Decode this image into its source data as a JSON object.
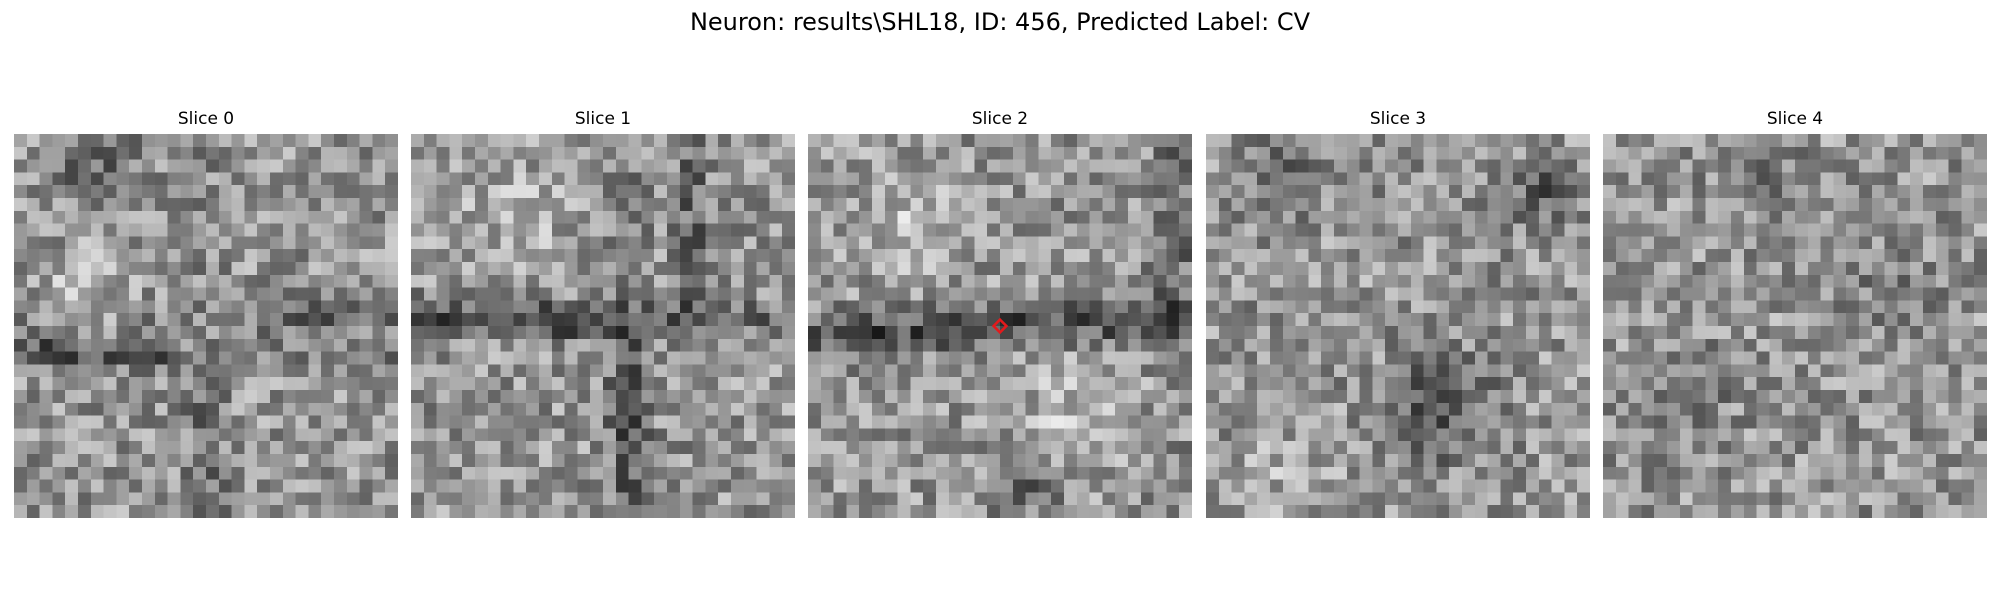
{
  "title": "Neuron: results\\SHL18, ID: 456, Predicted Label: CV",
  "panels": [
    {
      "label": "Slice 0"
    },
    {
      "label": "Slice 1"
    },
    {
      "label": "Slice 2"
    },
    {
      "label": "Slice 3"
    },
    {
      "label": "Slice 4"
    }
  ],
  "marker": {
    "slice_index": 2,
    "shape": "diamond",
    "color": "#e41a1c"
  },
  "colormap": "gray"
}
